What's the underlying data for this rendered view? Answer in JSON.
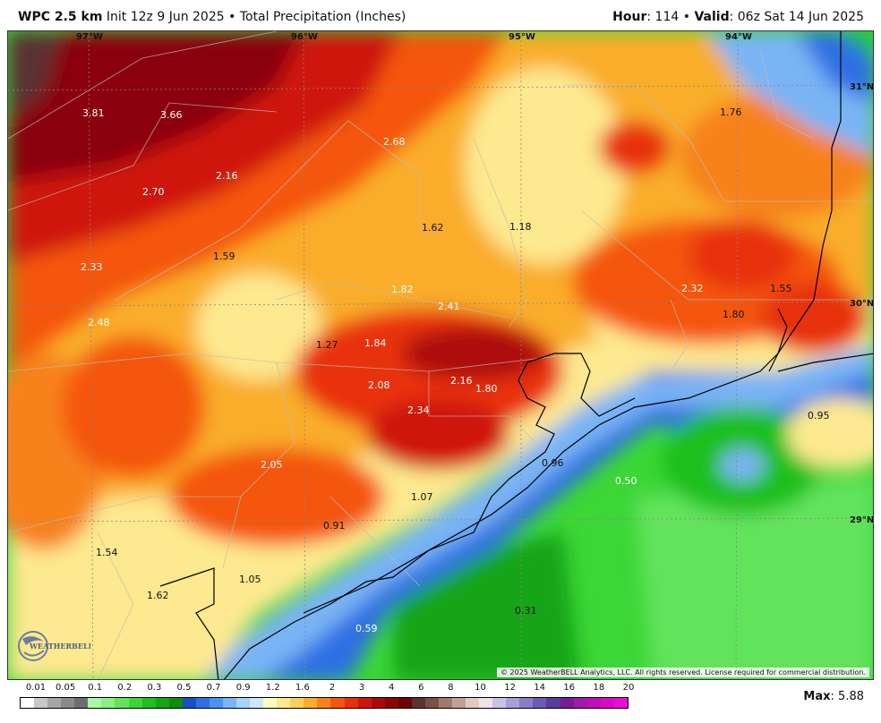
{
  "header": {
    "model": "WPC 2.5 km",
    "init": "Init 12z 9 Jun 2025",
    "sep": "•",
    "product": "Total Precipitation (Inches)",
    "hour_label": "Hour",
    "hour_value": ": 114",
    "valid_label": "Valid",
    "valid_value": ": 06z Sat 14 Jun 2025"
  },
  "map": {
    "longitudes": [
      "97°W",
      "96°W",
      "95°W",
      "94°W"
    ],
    "latitudes": [
      "31°N",
      "30°N",
      "29°N"
    ],
    "value_labels": [
      {
        "text": "3.81",
        "tone": "light"
      },
      {
        "text": "3.66",
        "tone": "light"
      },
      {
        "text": "2.68",
        "tone": "light"
      },
      {
        "text": "2.16",
        "tone": "light"
      },
      {
        "text": "2.70",
        "tone": "light"
      },
      {
        "text": "1.62",
        "tone": "dark"
      },
      {
        "text": "1.18",
        "tone": "dark"
      },
      {
        "text": "1.76",
        "tone": "dark"
      },
      {
        "text": "1.59",
        "tone": "dark"
      },
      {
        "text": "2.33",
        "tone": "light"
      },
      {
        "text": "1.82",
        "tone": "light"
      },
      {
        "text": "2.41",
        "tone": "light"
      },
      {
        "text": "2.32",
        "tone": "light"
      },
      {
        "text": "1.55",
        "tone": "dark"
      },
      {
        "text": "1.80",
        "tone": "dark"
      },
      {
        "text": "2.48",
        "tone": "light"
      },
      {
        "text": "1.27",
        "tone": "dark"
      },
      {
        "text": "1.84",
        "tone": "light"
      },
      {
        "text": "2.08",
        "tone": "light"
      },
      {
        "text": "2.16",
        "tone": "light"
      },
      {
        "text": "1.80",
        "tone": "light"
      },
      {
        "text": "2.34",
        "tone": "light"
      },
      {
        "text": "0.95",
        "tone": "dark"
      },
      {
        "text": "2.05",
        "tone": "light"
      },
      {
        "text": "0.96",
        "tone": "dark"
      },
      {
        "text": "0.50",
        "tone": "light"
      },
      {
        "text": "1.07",
        "tone": "dark"
      },
      {
        "text": "0.91",
        "tone": "dark"
      },
      {
        "text": "1.54",
        "tone": "dark"
      },
      {
        "text": "1.05",
        "tone": "dark"
      },
      {
        "text": "1.62",
        "tone": "dark"
      },
      {
        "text": "0.59",
        "tone": "light"
      },
      {
        "text": "0.31",
        "tone": "dark"
      }
    ],
    "copyright": "© 2025 WeatherBELL Analytics, LLC. All rights reserved. License required for commercial distribution.",
    "logo_text": "WEATHERBELL"
  },
  "legend": {
    "ticks": [
      "0.01",
      "0.05",
      "0.1",
      "0.2",
      "0.3",
      "0.5",
      "0.7",
      "0.9",
      "1.2",
      "1.6",
      "2",
      "3",
      "4",
      "6",
      "8",
      "10",
      "12",
      "14",
      "16",
      "18",
      "20"
    ],
    "colors": [
      "#ffffff",
      "#c8c8c8",
      "#a6a6a6",
      "#8a8a8a",
      "#6e6e6e",
      "#aaf7a6",
      "#8bef86",
      "#62e35c",
      "#3cd637",
      "#1fbf1c",
      "#15a515",
      "#0e8c10",
      "#1a4fc4",
      "#2f6fe3",
      "#4d92f0",
      "#79b4f5",
      "#a7d2fa",
      "#cde8fc",
      "#fdfcbd",
      "#fde98f",
      "#fbcd59",
      "#f9ad2b",
      "#f7821d",
      "#f45611",
      "#e8300c",
      "#cf160b",
      "#ad0709",
      "#8a0507",
      "#6e0304",
      "#5a3232",
      "#7a5048",
      "#a07a6e",
      "#c3a097",
      "#e2c8c0",
      "#efe2e8",
      "#c9c3e5",
      "#a79fd6",
      "#8b7cc6",
      "#6d5ab5",
      "#5a3d9e",
      "#7a1b96",
      "#a01aa8",
      "#c00fb8",
      "#d70cc7",
      "#e80ed8"
    ],
    "max_label": "Max",
    "max_value": ": 5.88"
  }
}
